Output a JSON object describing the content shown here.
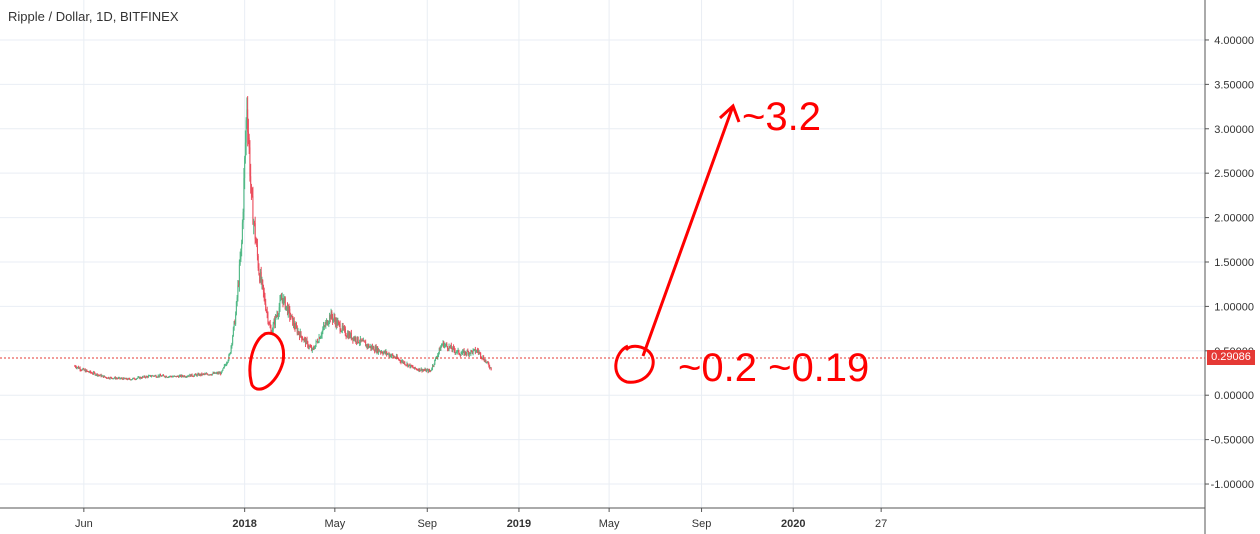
{
  "header": {
    "title": "Ripple / Dollar, 1D, BITFINEX"
  },
  "colors": {
    "up": "#53b987",
    "down": "#eb4d5c",
    "annotation": "#ff0000",
    "price_line": "#e53935",
    "grid": "#e9eef4"
  },
  "price_badge": "0.29086",
  "annotations": {
    "top_label": "~3.2",
    "bottom_label": "~0.2 ~0.19"
  },
  "chart_data": {
    "type": "candlestick",
    "title": "Ripple / Dollar, 1D, BITFINEX",
    "ylim": [
      -1.27,
      4.45
    ],
    "y_ticks": [
      "4.00000",
      "3.50000",
      "3.00000",
      "2.50000",
      "2.00000",
      "1.50000",
      "1.00000",
      "0.50000",
      "0.00000",
      "-0.50000",
      "-1.00000"
    ],
    "y_tick_values": [
      4,
      3.5,
      3,
      2.5,
      2,
      1.5,
      1,
      0.5,
      0,
      -0.5,
      -1
    ],
    "x_ticks": [
      "Jun",
      "2018",
      "May",
      "Sep",
      "2019",
      "May",
      "Sep",
      "2020",
      "27"
    ],
    "last_price": 0.29086,
    "series": [
      {
        "date": "2017-05-20",
        "value": 0.33
      },
      {
        "date": "2017-06-01",
        "value": 0.28
      },
      {
        "date": "2017-07-01",
        "value": 0.2
      },
      {
        "date": "2017-08-01",
        "value": 0.18
      },
      {
        "date": "2017-09-01",
        "value": 0.22
      },
      {
        "date": "2017-10-01",
        "value": 0.21
      },
      {
        "date": "2017-11-01",
        "value": 0.23
      },
      {
        "date": "2017-12-01",
        "value": 0.25
      },
      {
        "date": "2017-12-12",
        "value": 0.45
      },
      {
        "date": "2017-12-20",
        "value": 0.9
      },
      {
        "date": "2017-12-28",
        "value": 1.7
      },
      {
        "date": "2018-01-04",
        "value": 3.3
      },
      {
        "date": "2018-01-10",
        "value": 2.2
      },
      {
        "date": "2018-01-20",
        "value": 1.4
      },
      {
        "date": "2018-02-05",
        "value": 0.7
      },
      {
        "date": "2018-02-20",
        "value": 1.1
      },
      {
        "date": "2018-03-10",
        "value": 0.75
      },
      {
        "date": "2018-04-01",
        "value": 0.5
      },
      {
        "date": "2018-04-25",
        "value": 0.9
      },
      {
        "date": "2018-05-15",
        "value": 0.7
      },
      {
        "date": "2018-06-15",
        "value": 0.55
      },
      {
        "date": "2018-07-15",
        "value": 0.45
      },
      {
        "date": "2018-08-15",
        "value": 0.3
      },
      {
        "date": "2018-09-05",
        "value": 0.27
      },
      {
        "date": "2018-09-21",
        "value": 0.58
      },
      {
        "date": "2018-10-15",
        "value": 0.47
      },
      {
        "date": "2018-11-07",
        "value": 0.5
      },
      {
        "date": "2018-11-25",
        "value": 0.3
      }
    ]
  }
}
